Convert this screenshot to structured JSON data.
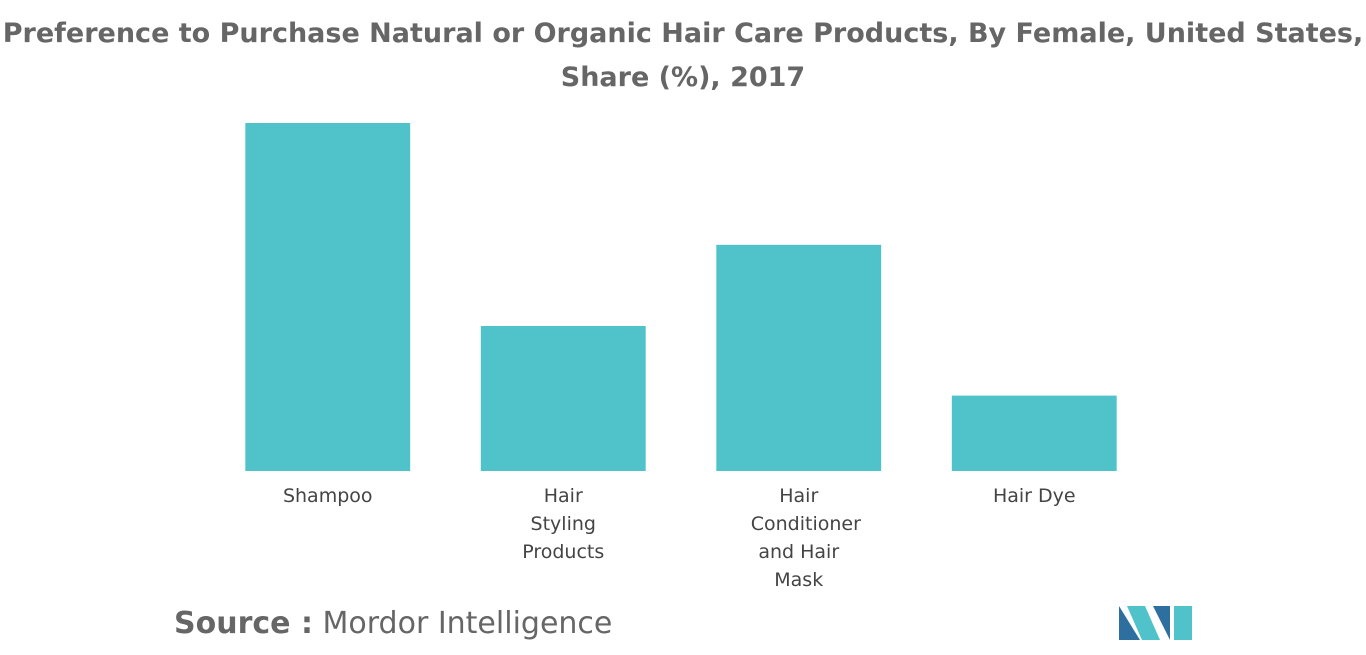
{
  "chart_data": {
    "type": "bar",
    "title": "Preference to Purchase Natural or Organic Hair Care Products, By Female, United States,",
    "subtitle": "Share (%), 2017",
    "categories": [
      "Shampoo",
      "Hair Styling Products",
      "Hair Conditioner and Hair Mask",
      "Hair Dye"
    ],
    "values": [
      60,
      25,
      39,
      13
    ],
    "color": "#50c2c9",
    "ylim": [
      0,
      60
    ]
  },
  "source": {
    "label": "Source :",
    "text": "Mordor Intelligence"
  }
}
